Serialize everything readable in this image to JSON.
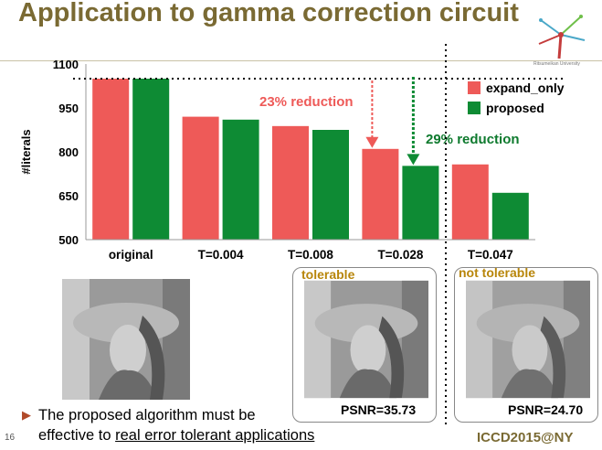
{
  "slide": {
    "title": "Application to gamma correction circuit",
    "page_number": "16",
    "conference": "ICCD2015@NY",
    "logo_text": "Ritsumeikan University",
    "bullet_line1": "The proposed algorithm must be",
    "bullet_line2_prefix": "effective to ",
    "bullet_line2_link": "real error tolerant applications"
  },
  "images": {
    "tolerable_label": "tolerable",
    "not_tolerable_label": "not tolerable",
    "psnr_tolerable": "PSNR=35.73",
    "psnr_not_tolerable": "PSNR=24.70"
  },
  "chart_data": {
    "type": "bar",
    "categories": [
      "original",
      "T=0.004",
      "T=0.008",
      "T=0.028",
      "T=0.047"
    ],
    "series": [
      {
        "name": "expand_only",
        "color": "#ee5a58",
        "values": [
          1050,
          920,
          888,
          810,
          757
        ]
      },
      {
        "name": "proposed",
        "color": "#0e8b34",
        "values": [
          1050,
          910,
          875,
          752,
          660
        ]
      }
    ],
    "ylabel": "#literals",
    "ylim": [
      500,
      1100
    ],
    "yticks": [
      500,
      650,
      800,
      950,
      1100
    ],
    "grid": false,
    "legend_position": "top-right",
    "annotations": [
      {
        "text": "23% reduction",
        "color": "#ee5a58"
      },
      {
        "text": "29% reduction",
        "color": "#0e7a2e"
      }
    ]
  }
}
